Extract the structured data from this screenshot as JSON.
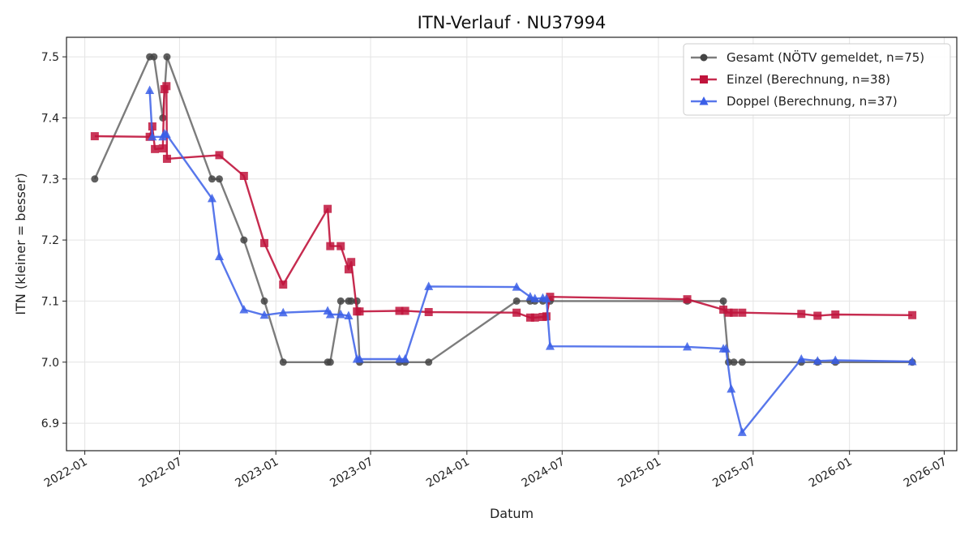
{
  "chart_data": {
    "type": "line",
    "title": "ITN-Verlauf · NU37994",
    "xlabel": "Datum",
    "ylabel": "ITN  (kleiner = besser)",
    "x_type": "date",
    "xlim": [
      "2021-11-27",
      "2026-07-25"
    ],
    "ylim": [
      6.855,
      7.532
    ],
    "x_ticks": [
      "2022-01",
      "2022-07",
      "2023-01",
      "2023-07",
      "2024-01",
      "2024-07",
      "2025-01",
      "2025-07",
      "2026-01",
      "2026-07"
    ],
    "y_ticks": [
      6.9,
      7.0,
      7.1,
      7.2,
      7.3,
      7.4,
      7.5
    ],
    "y_tick_labels": [
      "6.9",
      "7.0",
      "7.1",
      "7.2",
      "7.3",
      "7.4",
      "7.5"
    ],
    "grid": true,
    "legend": "top-right",
    "series": [
      {
        "name": "Gesamt (NÖTV gemeldet, n=75)",
        "color": "#444444",
        "marker": "circle",
        "line_opacity": 0.7,
        "points": [
          [
            "2022-01-20",
            7.3
          ],
          [
            "2022-05-05",
            7.5
          ],
          [
            "2022-05-13",
            7.5
          ],
          [
            "2022-05-30",
            7.4
          ],
          [
            "2022-06-07",
            7.5
          ],
          [
            "2022-09-01",
            7.3
          ],
          [
            "2022-09-15",
            7.3
          ],
          [
            "2022-11-01",
            7.2
          ],
          [
            "2022-12-10",
            7.1
          ],
          [
            "2023-01-15",
            7.0
          ],
          [
            "2023-04-10",
            7.0
          ],
          [
            "2023-04-15",
            7.0
          ],
          [
            "2023-05-05",
            7.1
          ],
          [
            "2023-05-20",
            7.1
          ],
          [
            "2023-05-25",
            7.1
          ],
          [
            "2023-06-05",
            7.1
          ],
          [
            "2023-06-10",
            7.0
          ],
          [
            "2023-08-25",
            7.0
          ],
          [
            "2023-09-05",
            7.0
          ],
          [
            "2023-10-20",
            7.0
          ],
          [
            "2024-04-05",
            7.1
          ],
          [
            "2024-05-01",
            7.1
          ],
          [
            "2024-05-10",
            7.1
          ],
          [
            "2024-05-25",
            7.1
          ],
          [
            "2024-06-08",
            7.1
          ],
          [
            "2025-02-25",
            7.1
          ],
          [
            "2025-05-05",
            7.1
          ],
          [
            "2025-05-15",
            7.0
          ],
          [
            "2025-05-25",
            7.0
          ],
          [
            "2025-06-10",
            7.0
          ],
          [
            "2025-10-01",
            7.0
          ],
          [
            "2025-11-01",
            7.0
          ],
          [
            "2025-12-05",
            7.0
          ],
          [
            "2026-05-01",
            7.0
          ]
        ]
      },
      {
        "name": "Einzel (Berechnung, n=38)",
        "color": "#c0143c",
        "marker": "square",
        "line_opacity": 0.9,
        "points": [
          [
            "2022-01-20",
            7.37
          ],
          [
            "2022-05-05",
            7.369
          ],
          [
            "2022-05-10",
            7.386
          ],
          [
            "2022-05-15",
            7.349
          ],
          [
            "2022-05-30",
            7.35
          ],
          [
            "2022-06-02",
            7.447
          ],
          [
            "2022-06-06",
            7.452
          ],
          [
            "2022-06-07",
            7.333
          ],
          [
            "2022-09-15",
            7.339
          ],
          [
            "2022-11-01",
            7.305
          ],
          [
            "2022-12-10",
            7.195
          ],
          [
            "2023-01-15",
            7.127
          ],
          [
            "2023-04-10",
            7.251
          ],
          [
            "2023-04-15",
            7.19
          ],
          [
            "2023-05-05",
            7.19
          ],
          [
            "2023-05-20",
            7.152
          ],
          [
            "2023-05-25",
            7.164
          ],
          [
            "2023-06-05",
            7.083
          ],
          [
            "2023-06-10",
            7.083
          ],
          [
            "2023-08-25",
            7.084
          ],
          [
            "2023-09-05",
            7.084
          ],
          [
            "2023-10-20",
            7.082
          ],
          [
            "2024-04-05",
            7.081
          ],
          [
            "2024-05-01",
            7.073
          ],
          [
            "2024-05-10",
            7.073
          ],
          [
            "2024-05-25",
            7.074
          ],
          [
            "2024-06-01",
            7.075
          ],
          [
            "2024-06-08",
            7.107
          ],
          [
            "2025-02-25",
            7.103
          ],
          [
            "2025-05-05",
            7.086
          ],
          [
            "2025-05-15",
            7.081
          ],
          [
            "2025-05-25",
            7.081
          ],
          [
            "2025-06-10",
            7.081
          ],
          [
            "2025-10-01",
            7.079
          ],
          [
            "2025-11-01",
            7.076
          ],
          [
            "2025-12-05",
            7.078
          ],
          [
            "2026-05-01",
            7.077
          ]
        ]
      },
      {
        "name": "Doppel (Berechnung, n=37)",
        "color": "#3b5fe8",
        "marker": "triangle",
        "line_opacity": 0.85,
        "points": [
          [
            "2022-05-05",
            7.445
          ],
          [
            "2022-05-10",
            7.369
          ],
          [
            "2022-05-30",
            7.369
          ],
          [
            "2022-06-02",
            7.374
          ],
          [
            "2022-06-06",
            7.373
          ],
          [
            "2022-09-01",
            7.268
          ],
          [
            "2022-09-15",
            7.173
          ],
          [
            "2022-11-01",
            7.086
          ],
          [
            "2022-12-10",
            7.077
          ],
          [
            "2023-01-15",
            7.081
          ],
          [
            "2023-04-10",
            7.084
          ],
          [
            "2023-04-15",
            7.078
          ],
          [
            "2023-05-05",
            7.078
          ],
          [
            "2023-05-20",
            7.076
          ],
          [
            "2023-06-05",
            7.005
          ],
          [
            "2023-06-10",
            7.005
          ],
          [
            "2023-08-25",
            7.005
          ],
          [
            "2023-09-05",
            7.005
          ],
          [
            "2023-10-20",
            7.124
          ],
          [
            "2024-04-05",
            7.123
          ],
          [
            "2024-05-01",
            7.107
          ],
          [
            "2024-05-10",
            7.104
          ],
          [
            "2024-05-25",
            7.105
          ],
          [
            "2024-06-01",
            7.104
          ],
          [
            "2024-06-08",
            7.026
          ],
          [
            "2025-02-25",
            7.025
          ],
          [
            "2025-05-05",
            7.022
          ],
          [
            "2025-05-10",
            7.022
          ],
          [
            "2025-05-20",
            6.956
          ],
          [
            "2025-06-10",
            6.885
          ],
          [
            "2025-10-01",
            7.005
          ],
          [
            "2025-11-01",
            7.002
          ],
          [
            "2025-12-05",
            7.003
          ],
          [
            "2026-05-01",
            7.001
          ]
        ]
      }
    ]
  }
}
